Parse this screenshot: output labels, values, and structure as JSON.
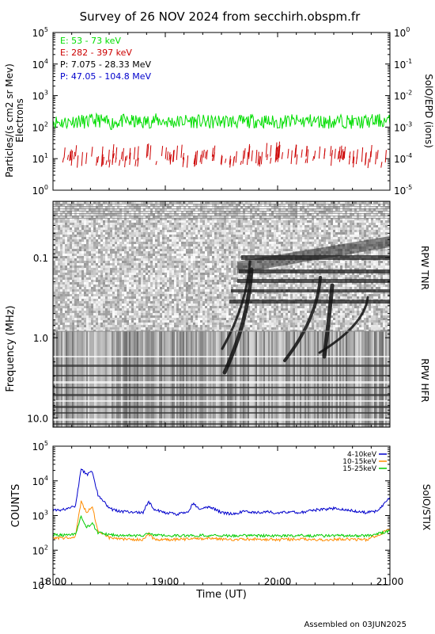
{
  "title": "Survey of 26 NOV 2024 from secchirh.obspm.fr",
  "footer": "Assembled on 03JUN2025",
  "time_axis": {
    "label": "Time (UT)",
    "range_hours": [
      18,
      21
    ],
    "ticks": [
      {
        "value": 18,
        "label": "18:00"
      },
      {
        "value": 19,
        "label": "19:00"
      },
      {
        "value": 20,
        "label": "20:00"
      },
      {
        "value": 21,
        "label": "21:00"
      }
    ]
  },
  "chart_data": [
    {
      "id": "epd",
      "type": "line",
      "ylabel": "Particles/(s cm2 sr Mev)",
      "ylabel2": "Electrons",
      "right_label": "SolO/EPD (ions)",
      "yscale": "log",
      "ylim": [
        1,
        100000
      ],
      "y_ticks": [
        {
          "value": 1,
          "label": "10",
          "exp": "0"
        },
        {
          "value": 10,
          "label": "10",
          "exp": "1"
        },
        {
          "value": 100,
          "label": "10",
          "exp": "2"
        },
        {
          "value": 1000,
          "label": "10",
          "exp": "3"
        },
        {
          "value": 10000,
          "label": "10",
          "exp": "4"
        },
        {
          "value": 100000,
          "label": "10",
          "exp": "5"
        }
      ],
      "right_ticks": [
        {
          "label": "10",
          "exp": "-5"
        },
        {
          "label": "10",
          "exp": "-4"
        },
        {
          "label": "10",
          "exp": "-3"
        },
        {
          "label": "10",
          "exp": "-2"
        },
        {
          "label": "10",
          "exp": "-1"
        },
        {
          "label": "10",
          "exp": "0"
        }
      ],
      "series": [
        {
          "name": "E: 53 - 73 keV",
          "color": "#00dd00",
          "x": [
            18.0,
            18.1,
            18.2,
            18.3,
            18.4,
            18.5,
            18.6,
            18.7,
            18.8,
            18.9,
            19.0,
            19.1,
            19.2,
            19.3,
            19.4,
            19.5,
            19.6,
            19.7,
            19.8,
            19.9,
            20.0,
            20.1,
            20.2,
            20.3,
            20.4,
            20.5,
            20.6,
            20.7,
            20.8,
            20.9,
            21.0
          ],
          "values": [
            150,
            140,
            160,
            145,
            170,
            130,
            155,
            150,
            140,
            165,
            150,
            145,
            160,
            150,
            140,
            155,
            150,
            145,
            160,
            150,
            140,
            155,
            150,
            160,
            145,
            150,
            155,
            140,
            150,
            160,
            150
          ]
        },
        {
          "name": "E: 282 - 397 keV",
          "color": "#cc0000",
          "x": [
            18.0,
            18.2,
            18.4,
            18.6,
            18.8,
            19.0,
            19.2,
            19.4,
            19.6,
            19.8,
            20.0,
            20.2,
            20.4,
            20.6,
            20.8,
            21.0
          ],
          "values": [
            8,
            8,
            9,
            8,
            8,
            8,
            9,
            8,
            8,
            8,
            9,
            8,
            8,
            9,
            8,
            8
          ]
        },
        {
          "name": "P: 7.075 - 28.33 MeV",
          "color": "#000000",
          "x": [],
          "values": []
        },
        {
          "name": "P: 47.05 - 104.8 MeV",
          "color": "#0000cc",
          "x": [],
          "values": []
        }
      ]
    },
    {
      "id": "rpw",
      "type": "heatmap",
      "ylabel": "Frequency (MHz)",
      "yscale": "log",
      "ylim": [
        0.02,
        13
      ],
      "y_ticks": [
        {
          "value": 0.1,
          "label": "0.1"
        },
        {
          "value": 1.0,
          "label": "1.0"
        },
        {
          "value": 10.0,
          "label": "10.0"
        }
      ],
      "right_labels": [
        "RPW TNR",
        "RPW HFR"
      ]
    },
    {
      "id": "stix",
      "type": "line",
      "ylabel": "COUNTS",
      "right_label": "SolO/STIX",
      "yscale": "log",
      "ylim": [
        10,
        100000
      ],
      "y_ticks": [
        {
          "value": 10,
          "label": "10",
          "exp": "1"
        },
        {
          "value": 100,
          "label": "10",
          "exp": "2"
        },
        {
          "value": 1000,
          "label": "10",
          "exp": "3"
        },
        {
          "value": 10000,
          "label": "10",
          "exp": "4"
        },
        {
          "value": 100000,
          "label": "10",
          "exp": "5"
        }
      ],
      "series": [
        {
          "name": "4-10keV",
          "color": "#0000cc",
          "x": [
            18.0,
            18.1,
            18.2,
            18.25,
            18.3,
            18.35,
            18.4,
            18.5,
            18.6,
            18.8,
            18.85,
            18.9,
            19.0,
            19.1,
            19.2,
            19.25,
            19.3,
            19.4,
            19.5,
            19.6,
            19.7,
            19.8,
            19.9,
            20.0,
            20.1,
            20.2,
            20.3,
            20.4,
            20.5,
            20.6,
            20.7,
            20.8,
            20.9,
            21.0
          ],
          "values": [
            1400,
            1500,
            1800,
            22000,
            15000,
            18000,
            4000,
            1600,
            1300,
            1200,
            2500,
            1500,
            1200,
            1100,
            1200,
            2300,
            1500,
            1800,
            1200,
            1100,
            1300,
            1200,
            1300,
            1200,
            1300,
            1200,
            1400,
            1500,
            1600,
            1500,
            1300,
            1200,
            1400,
            3500
          ]
        },
        {
          "name": "10-15keV",
          "color": "#ff8c00",
          "x": [
            18.0,
            18.1,
            18.2,
            18.25,
            18.3,
            18.35,
            18.4,
            18.5,
            18.6,
            18.8,
            18.85,
            18.9,
            19.0,
            19.2,
            19.4,
            19.6,
            19.8,
            20.0,
            20.2,
            20.4,
            20.6,
            20.8,
            21.0
          ],
          "values": [
            230,
            220,
            250,
            2500,
            1200,
            1800,
            350,
            230,
            210,
            200,
            300,
            210,
            200,
            210,
            220,
            200,
            210,
            200,
            210,
            200,
            210,
            200,
            400
          ]
        },
        {
          "name": "15-25keV",
          "color": "#00cc00",
          "x": [
            18.0,
            18.1,
            18.2,
            18.25,
            18.3,
            18.35,
            18.4,
            18.5,
            18.6,
            18.8,
            18.85,
            18.9,
            19.0,
            19.2,
            19.4,
            19.6,
            19.8,
            20.0,
            20.2,
            20.4,
            20.6,
            20.8,
            21.0
          ],
          "values": [
            280,
            270,
            290,
            950,
            450,
            600,
            320,
            280,
            270,
            260,
            330,
            270,
            260,
            265,
            270,
            260,
            265,
            260,
            265,
            260,
            265,
            260,
            350
          ]
        }
      ]
    }
  ]
}
